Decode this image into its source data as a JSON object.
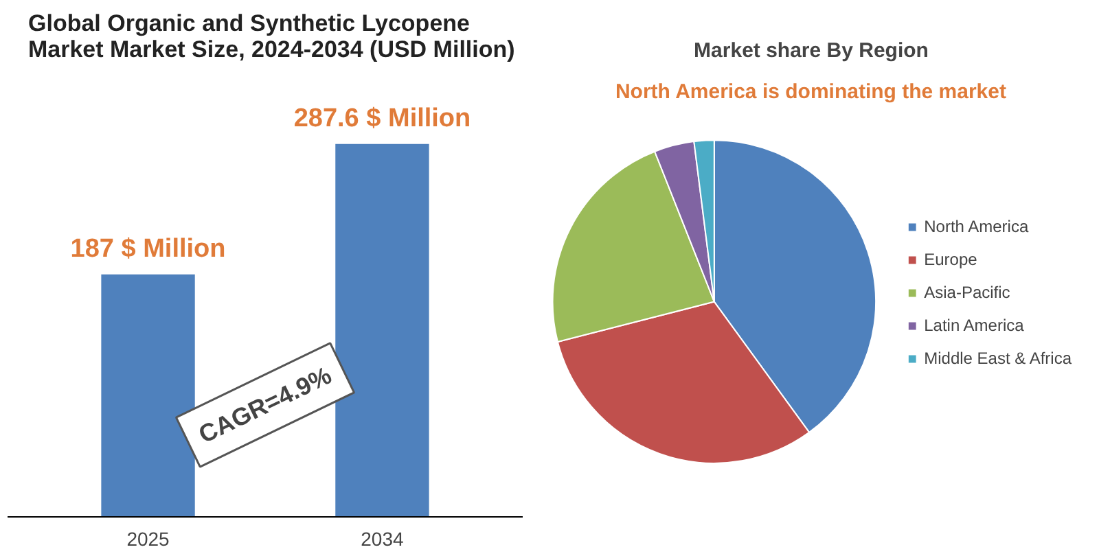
{
  "chart_data": [
    {
      "type": "bar",
      "title": "Global Organic and Synthetic Lycopene Market Market Size, 2024-2034 (USD Million)",
      "categories": [
        "2025",
        "2034"
      ],
      "values": [
        187,
        287.6
      ],
      "value_labels": [
        "187 $ Million",
        "287.6 $ Million"
      ],
      "color": "#4f81bd",
      "annotations": [
        "CAGR=4.9%"
      ]
    },
    {
      "type": "pie",
      "title": "Market share By Region",
      "subtitle": "North America is dominating the market",
      "categories": [
        "North America",
        "Europe",
        "Asia-Pacific",
        "Latin America",
        "Middle East & Africa"
      ],
      "values": [
        40,
        31,
        23,
        4,
        2
      ],
      "colors": [
        "#4f81bd",
        "#c0504d",
        "#9bbb59",
        "#8064a2",
        "#4bacc6"
      ],
      "legend": "right"
    }
  ]
}
